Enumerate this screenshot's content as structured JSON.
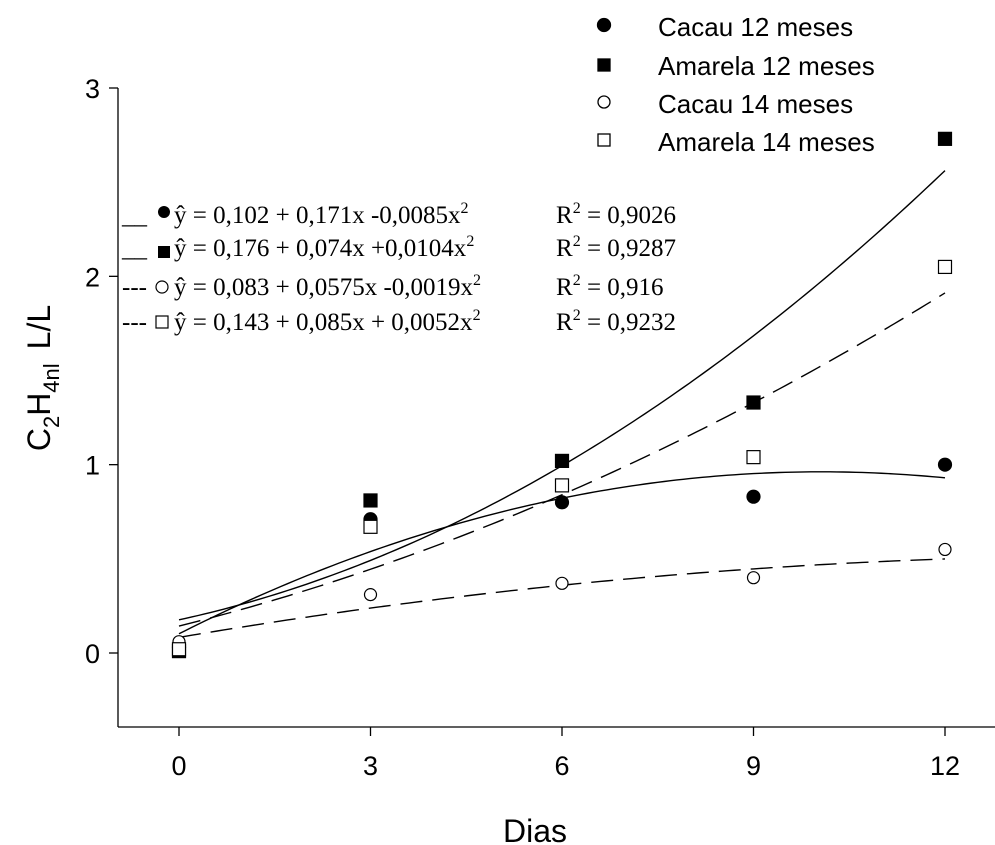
{
  "chart_data": {
    "type": "scatter",
    "xlabel": "Dias",
    "ylabel": {
      "parts": [
        "C",
        "2",
        "H",
        "4",
        "nl",
        "L/L"
      ]
    },
    "x_ticks": [
      "0",
      "3",
      "6",
      "9",
      "12"
    ],
    "y_ticks": [
      "0",
      "1",
      "2",
      "3"
    ],
    "xlim": [
      -1.6,
      13.2
    ],
    "ylim": [
      -0.38,
      3.0
    ],
    "grid": false,
    "legend_position": "top-right",
    "series": [
      {
        "name": "Cacau 12 meses",
        "marker": "filled-circle",
        "x": [
          0,
          3,
          6,
          9,
          12
        ],
        "y": [
          0.03,
          0.71,
          0.8,
          0.83,
          1.0
        ],
        "fit": {
          "coefficients": [
            0.102,
            0.171,
            -0.0085
          ],
          "line": "solid"
        }
      },
      {
        "name": "Amarela 12 meses",
        "marker": "filled-square",
        "x": [
          0,
          3,
          6,
          9,
          12
        ],
        "y": [
          0.01,
          0.81,
          1.02,
          1.33,
          2.73
        ],
        "fit": {
          "coefficients": [
            0.176,
            0.074,
            0.0104
          ],
          "line": "solid"
        }
      },
      {
        "name": "Cacau 14 meses",
        "marker": "open-circle",
        "x": [
          0,
          3,
          6,
          9,
          12
        ],
        "y": [
          0.06,
          0.31,
          0.37,
          0.4,
          0.55
        ],
        "fit": {
          "coefficients": [
            0.083,
            0.0575,
            -0.0019
          ],
          "line": "dashed"
        }
      },
      {
        "name": "Amarela 14 meses",
        "marker": "open-square",
        "x": [
          0,
          3,
          6,
          9,
          12
        ],
        "y": [
          0.02,
          0.67,
          0.89,
          1.04,
          2.05
        ],
        "fit": {
          "coefficients": [
            0.143,
            0.085,
            0.0052
          ],
          "line": "dashed"
        }
      }
    ],
    "equations": [
      {
        "prefix": "__",
        "marker": "filled-circle",
        "equation": "ŷ = 0,102 + 0,171x -0,0085x",
        "sup": "2",
        "r_label": "R",
        "r_sup": "2",
        "r_value": " = 0,9026"
      },
      {
        "prefix": "__",
        "marker": "filled-square",
        "equation": "ŷ = 0,176  + 0,074x +0,0104x",
        "sup": "2",
        "r_label": "R",
        "r_sup": "2",
        "r_value": " = 0,9287"
      },
      {
        "prefix": "---",
        "marker": "open-circle",
        "equation": "ŷ = 0,083 + 0,0575x -0,0019x",
        "sup": "2",
        "r_label": "R",
        "r_sup": "2",
        "r_value": " = 0,916"
      },
      {
        "prefix": "---",
        "marker": "open-square",
        "equation": "ŷ = 0,143 + 0,085x + 0,0052x",
        "sup": "2",
        "r_label": "R",
        "r_sup": "2",
        "r_value": " = 0,9232"
      }
    ]
  }
}
